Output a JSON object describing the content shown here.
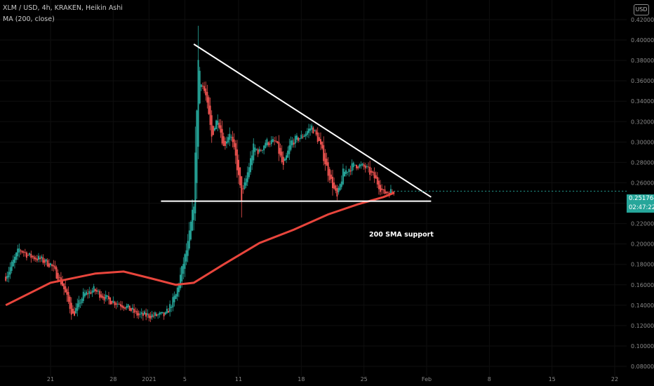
{
  "header": {
    "symbol_line": "XLM / USD, 4h, KRAKEN, Heikin Ashi",
    "indicator_line": "MA (200, close)",
    "currency_button": "USD"
  },
  "price_tag": {
    "last_price": "0.251764",
    "countdown": "02:47:22"
  },
  "annotation": {
    "text": "200 SMA support"
  },
  "colors": {
    "up": "#26a69a",
    "down": "#ef5350",
    "ma": "#e8453c",
    "trendline": "#ffffff",
    "background": "#000000"
  },
  "chart_data": {
    "type": "candlestick",
    "title": "XLM / USD, 4h, KRAKEN, Heikin Ashi",
    "ylim": [
      0.08,
      0.43
    ],
    "y_ticks": [
      "0.080000",
      "0.100000",
      "0.120000",
      "0.140000",
      "0.160000",
      "0.180000",
      "0.200000",
      "0.220000",
      "0.240000",
      "0.260000",
      "0.280000",
      "0.300000",
      "0.320000",
      "0.340000",
      "0.360000",
      "0.380000",
      "0.400000",
      "0.420000"
    ],
    "x_ticks": [
      "21",
      "28",
      "2021",
      "5",
      "11",
      "18",
      "25",
      "Feb",
      "8",
      "15",
      "22"
    ],
    "x_tick_dates": [
      "2020-12-21",
      "2020-12-28",
      "2021-01-01",
      "2021-01-05",
      "2021-01-11",
      "2021-01-18",
      "2021-01-25",
      "2021-02-01",
      "2021-02-08",
      "2021-02-15",
      "2021-02-22"
    ],
    "price_path": [
      [
        "2020-12-16T00:00",
        0.168
      ],
      [
        "2020-12-17T12:00",
        0.195
      ],
      [
        "2020-12-18T16:00",
        0.188
      ],
      [
        "2020-12-19T20:00",
        0.185
      ],
      [
        "2020-12-21T00:00",
        0.18
      ],
      [
        "2020-12-22T08:00",
        0.16
      ],
      [
        "2020-12-23T12:00",
        0.13
      ],
      [
        "2020-12-24T16:00",
        0.15
      ],
      [
        "2020-12-25T20:00",
        0.155
      ],
      [
        "2020-12-27T12:00",
        0.145
      ],
      [
        "2020-12-29T04:00",
        0.14
      ],
      [
        "2020-12-30T20:00",
        0.13
      ],
      [
        "2021-01-01T08:00",
        0.13
      ],
      [
        "2021-01-02T20:00",
        0.13
      ],
      [
        "2021-01-04T00:00",
        0.15
      ],
      [
        "2021-01-05T08:00",
        0.2
      ],
      [
        "2021-01-06T00:00",
        0.24
      ],
      [
        "2021-01-06T12:00",
        0.38
      ],
      [
        "2021-01-06T20:00",
        0.36
      ],
      [
        "2021-01-07T08:00",
        0.345
      ],
      [
        "2021-01-08T00:00",
        0.305
      ],
      [
        "2021-01-08T16:00",
        0.325
      ],
      [
        "2021-01-09T08:00",
        0.295
      ],
      [
        "2021-01-10T00:00",
        0.31
      ],
      [
        "2021-01-10T16:00",
        0.285
      ],
      [
        "2021-01-11T08:00",
        0.245
      ],
      [
        "2021-01-12T00:00",
        0.27
      ],
      [
        "2021-01-12T16:00",
        0.295
      ],
      [
        "2021-01-13T08:00",
        0.29
      ],
      [
        "2021-01-14T00:00",
        0.3
      ],
      [
        "2021-01-15T04:00",
        0.3
      ],
      [
        "2021-01-16T00:00",
        0.275
      ],
      [
        "2021-01-16T20:00",
        0.3
      ],
      [
        "2021-01-18T00:00",
        0.305
      ],
      [
        "2021-01-19T04:00",
        0.315
      ],
      [
        "2021-01-20T00:00",
        0.3
      ],
      [
        "2021-01-21T00:00",
        0.27
      ],
      [
        "2021-01-22T00:00",
        0.245
      ],
      [
        "2021-01-22T16:00",
        0.27
      ],
      [
        "2021-01-24T00:00",
        0.278
      ],
      [
        "2021-01-25T04:00",
        0.275
      ],
      [
        "2021-01-26T04:00",
        0.265
      ],
      [
        "2021-01-27T04:00",
        0.25
      ],
      [
        "2021-01-28T08:00",
        0.252
      ]
    ],
    "ma_200": [
      [
        "2020-12-16T00:00",
        0.14
      ],
      [
        "2020-12-21T00:00",
        0.162
      ],
      [
        "2020-12-26T00:00",
        0.171
      ],
      [
        "2020-12-29T04:00",
        0.173
      ],
      [
        "2021-01-01T08:00",
        0.166
      ],
      [
        "2021-01-04T00:00",
        0.16
      ],
      [
        "2021-01-06T00:00",
        0.162
      ],
      [
        "2021-01-09T08:00",
        0.18
      ],
      [
        "2021-01-13T08:00",
        0.201
      ],
      [
        "2021-01-17T04:00",
        0.214
      ],
      [
        "2021-01-21T00:00",
        0.229
      ],
      [
        "2021-01-24T08:00",
        0.239
      ],
      [
        "2021-01-27T04:00",
        0.246
      ],
      [
        "2021-01-28T08:00",
        0.25
      ]
    ],
    "trendlines": [
      {
        "name": "descending resistance",
        "from": [
          "2021-01-06T00:00",
          0.396
        ],
        "to": [
          "2021-02-01T12:00",
          0.246
        ]
      },
      {
        "name": "horizontal support",
        "from": [
          "2021-01-02T08:00",
          0.242
        ],
        "to": [
          "2021-02-01T12:00",
          0.242
        ]
      }
    ],
    "last_price": 0.251764
  }
}
